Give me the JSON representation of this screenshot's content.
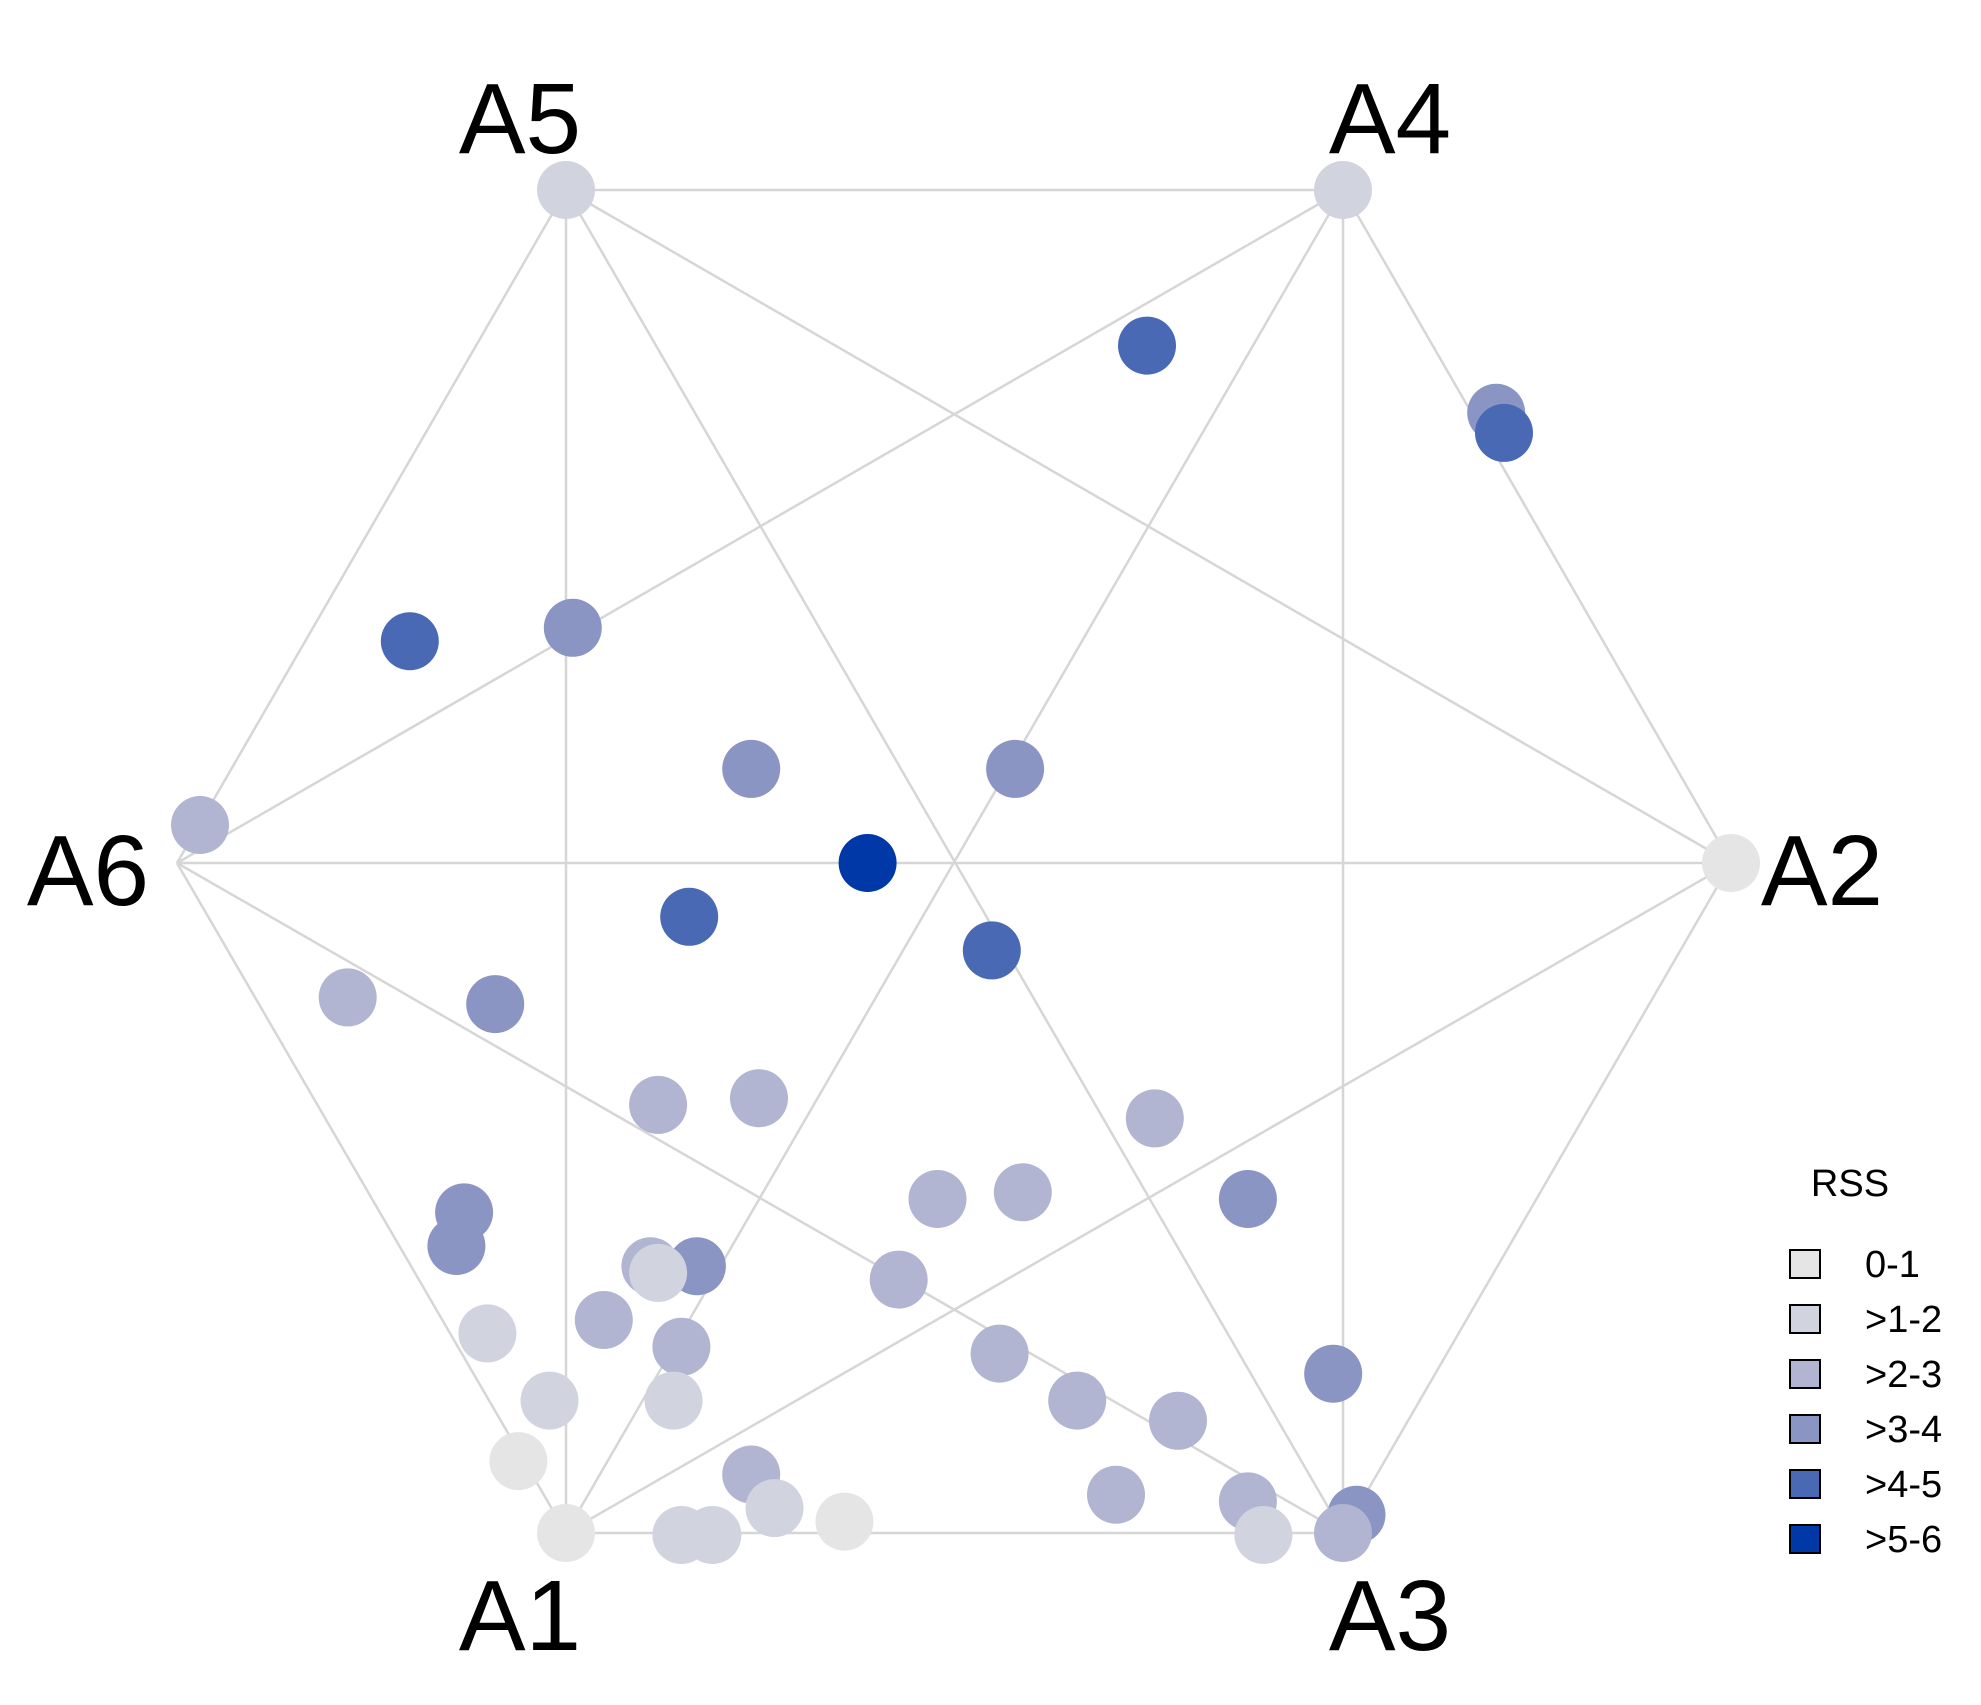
{
  "chart_data": {
    "type": "scatter",
    "vertices": [
      "A1",
      "A2",
      "A3",
      "A4",
      "A5",
      "A6"
    ],
    "legend": {
      "title": "RSS",
      "placement": "right",
      "classes": [
        {
          "label": "0-1",
          "color": "#e5e5e5"
        },
        {
          "label": ">1-2",
          "color": "#d1d4de"
        },
        {
          "label": ">2-3",
          "color": "#b1b5d2"
        },
        {
          "label": ">3-4",
          "color": "#8b95c4"
        },
        {
          "label": ">4-5",
          "color": "#4a69b5"
        },
        {
          "label": ">5-6",
          "color": "#0038a8"
        }
      ]
    },
    "vertex_class": {
      "A1": 0,
      "A2": 0,
      "A3": 2,
      "A4": 1,
      "A5": 1,
      "A6": 2
    },
    "points": [
      {
        "c": 4,
        "x": 0.25,
        "y": 0.77
      },
      {
        "c": 3,
        "x": 0.7,
        "y": 0.67
      },
      {
        "c": 4,
        "x": 0.71,
        "y": 0.64
      },
      {
        "c": 4,
        "x": -0.7,
        "y": 0.33
      },
      {
        "c": 3,
        "x": -0.49,
        "y": 0.35
      },
      {
        "c": 3,
        "x": -0.26,
        "y": 0.14
      },
      {
        "c": 3,
        "x": 0.08,
        "y": 0.14
      },
      {
        "c": 5,
        "x": -0.11,
        "y": 0.0
      },
      {
        "c": 4,
        "x": -0.34,
        "y": -0.08
      },
      {
        "c": 4,
        "x": 0.05,
        "y": -0.13
      },
      {
        "c": 2,
        "x": -0.78,
        "y": -0.2
      },
      {
        "c": 3,
        "x": -0.59,
        "y": -0.21
      },
      {
        "c": 2,
        "x": -0.38,
        "y": -0.36
      },
      {
        "c": 2,
        "x": -0.25,
        "y": -0.35
      },
      {
        "c": 2,
        "x": 0.26,
        "y": -0.38
      },
      {
        "c": 2,
        "x": -0.02,
        "y": -0.5
      },
      {
        "c": 2,
        "x": 0.09,
        "y": -0.49
      },
      {
        "c": 3,
        "x": 0.38,
        "y": -0.5
      },
      {
        "c": 3,
        "x": -0.63,
        "y": -0.52
      },
      {
        "c": 3,
        "x": -0.64,
        "y": -0.57
      },
      {
        "c": 2,
        "x": -0.39,
        "y": -0.6
      },
      {
        "c": 3,
        "x": -0.33,
        "y": -0.6
      },
      {
        "c": 1,
        "x": -0.38,
        "y": -0.61
      },
      {
        "c": 2,
        "x": -0.07,
        "y": -0.62
      },
      {
        "c": 1,
        "x": -0.6,
        "y": -0.7
      },
      {
        "c": 2,
        "x": -0.45,
        "y": -0.68
      },
      {
        "c": 2,
        "x": -0.35,
        "y": -0.72
      },
      {
        "c": 2,
        "x": 0.06,
        "y": -0.73
      },
      {
        "c": 3,
        "x": 0.49,
        "y": -0.76
      },
      {
        "c": 1,
        "x": -0.52,
        "y": -0.8
      },
      {
        "c": 1,
        "x": -0.36,
        "y": -0.8
      },
      {
        "c": 2,
        "x": 0.16,
        "y": -0.8
      },
      {
        "c": 2,
        "x": 0.29,
        "y": -0.83
      },
      {
        "c": 0,
        "x": -0.56,
        "y": -0.89
      },
      {
        "c": 2,
        "x": -0.26,
        "y": -0.91
      },
      {
        "c": 2,
        "x": 0.21,
        "y": -0.94
      },
      {
        "c": 2,
        "x": 0.38,
        "y": -0.95
      },
      {
        "c": 1,
        "x": -0.23,
        "y": -0.96
      },
      {
        "c": 3,
        "x": 0.52,
        "y": -0.97
      },
      {
        "c": 0,
        "x": -0.14,
        "y": -0.98
      },
      {
        "c": 1,
        "x": -0.35,
        "y": -1.0
      },
      {
        "c": 1,
        "x": -0.31,
        "y": -1.0
      },
      {
        "c": 1,
        "x": 0.4,
        "y": -1.0
      }
    ]
  }
}
